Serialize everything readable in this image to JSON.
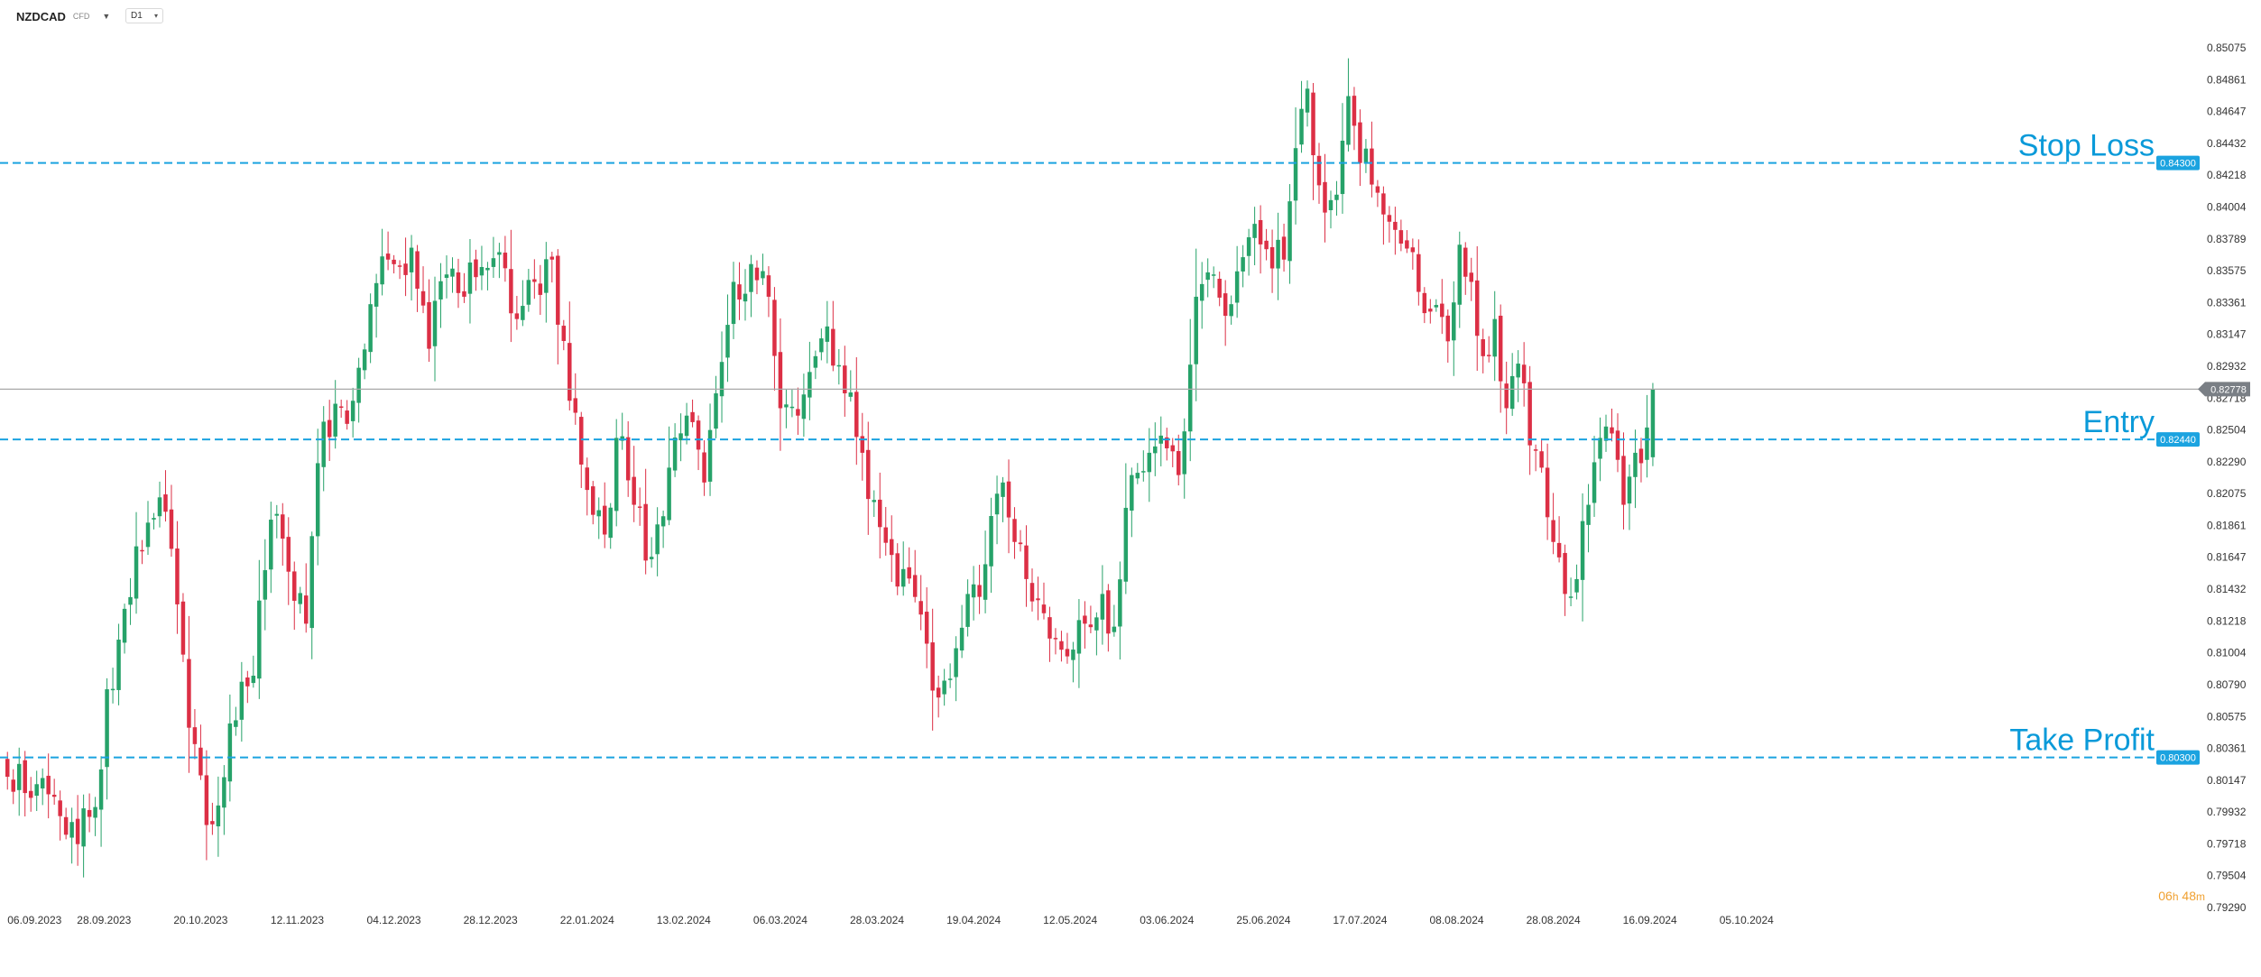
{
  "toolbar": {
    "symbol": "NZDCAD",
    "instrument_type": "CFD",
    "symbol_dropdown_icon": "caret-down-icon",
    "timeframe": "D1",
    "timeframe_dropdown_icon": "chevron-down-icon"
  },
  "countdown": {
    "hours": "06",
    "hours_unit": "h",
    "minutes": "48",
    "minutes_unit": "m"
  },
  "colors": {
    "bull": "#26a269",
    "bear": "#dc2f45",
    "level_line": "#1ba3e0",
    "level_label_text": "#0a9ad9",
    "current_price_line": "#a8a8a8",
    "current_price_badge": "#7a7f85",
    "axis_text": "#333333"
  },
  "chart_data": {
    "type": "candlestick",
    "title": "",
    "xlabel": "",
    "ylabel": "",
    "ylim": [
      0.7929,
      0.8518
    ],
    "grid": false,
    "y_ticks": [
      "0.85075",
      "0.84861",
      "0.84647",
      "0.84432",
      "0.84218",
      "0.84004",
      "0.83789",
      "0.83575",
      "0.83361",
      "0.83147",
      "0.82932",
      "0.82718",
      "0.82504",
      "0.82290",
      "0.82075",
      "0.81861",
      "0.81647",
      "0.81432",
      "0.81218",
      "0.81004",
      "0.80790",
      "0.80575",
      "0.80361",
      "0.80147",
      "0.79932",
      "0.79718",
      "0.79504",
      "0.79290"
    ],
    "x_ticks": [
      "06.09.2023",
      "28.09.2023",
      "20.10.2023",
      "12.11.2023",
      "04.12.2023",
      "28.12.2023",
      "22.01.2024",
      "13.02.2024",
      "06.03.2024",
      "28.03.2024",
      "19.04.2024",
      "12.05.2024",
      "03.06.2024",
      "25.06.2024",
      "17.07.2024",
      "08.08.2024",
      "28.08.2024",
      "16.09.2024",
      "05.10.2024"
    ],
    "x_tick_spacing_bars": 16.5,
    "anchors": [
      {
        "bar": 0,
        "close": 0.8017
      },
      {
        "bar": 5,
        "close": 0.8012
      },
      {
        "bar": 10,
        "close": 0.7978
      },
      {
        "bar": 14,
        "close": 0.799
      },
      {
        "bar": 20,
        "close": 0.813
      },
      {
        "bar": 24,
        "close": 0.8188
      },
      {
        "bar": 26,
        "close": 0.8205
      },
      {
        "bar": 29,
        "close": 0.8133
      },
      {
        "bar": 31,
        "close": 0.805
      },
      {
        "bar": 35,
        "close": 0.7985
      },
      {
        "bar": 39,
        "close": 0.8055
      },
      {
        "bar": 42,
        "close": 0.8085
      },
      {
        "bar": 45,
        "close": 0.819
      },
      {
        "bar": 48,
        "close": 0.8155
      },
      {
        "bar": 51,
        "close": 0.812
      },
      {
        "bar": 53,
        "close": 0.8228
      },
      {
        "bar": 56,
        "close": 0.8268
      },
      {
        "bar": 59,
        "close": 0.827
      },
      {
        "bar": 62,
        "close": 0.8335
      },
      {
        "bar": 65,
        "close": 0.8365
      },
      {
        "bar": 69,
        "close": 0.8373
      },
      {
        "bar": 72,
        "close": 0.8305
      },
      {
        "bar": 75,
        "close": 0.8355
      },
      {
        "bar": 78,
        "close": 0.834
      },
      {
        "bar": 81,
        "close": 0.836
      },
      {
        "bar": 84,
        "close": 0.837
      },
      {
        "bar": 87,
        "close": 0.8325
      },
      {
        "bar": 90,
        "close": 0.835
      },
      {
        "bar": 93,
        "close": 0.8365
      },
      {
        "bar": 96,
        "close": 0.827
      },
      {
        "bar": 99,
        "close": 0.821
      },
      {
        "bar": 102,
        "close": 0.818
      },
      {
        "bar": 104,
        "close": 0.8245
      },
      {
        "bar": 107,
        "close": 0.82
      },
      {
        "bar": 110,
        "close": 0.8165
      },
      {
        "bar": 113,
        "close": 0.8225
      },
      {
        "bar": 116,
        "close": 0.826
      },
      {
        "bar": 119,
        "close": 0.8215
      },
      {
        "bar": 121,
        "close": 0.8275
      },
      {
        "bar": 124,
        "close": 0.835
      },
      {
        "bar": 127,
        "close": 0.8362
      },
      {
        "bar": 130,
        "close": 0.834
      },
      {
        "bar": 132,
        "close": 0.8265
      },
      {
        "bar": 135,
        "close": 0.826
      },
      {
        "bar": 138,
        "close": 0.83
      },
      {
        "bar": 140,
        "close": 0.832
      },
      {
        "bar": 143,
        "close": 0.8275
      },
      {
        "bar": 146,
        "close": 0.8235
      },
      {
        "bar": 149,
        "close": 0.8185
      },
      {
        "bar": 152,
        "close": 0.8145
      },
      {
        "bar": 155,
        "close": 0.8138
      },
      {
        "bar": 158,
        "close": 0.8075
      },
      {
        "bar": 161,
        "close": 0.8083
      },
      {
        "bar": 164,
        "close": 0.814
      },
      {
        "bar": 167,
        "close": 0.816
      },
      {
        "bar": 170,
        "close": 0.8215
      },
      {
        "bar": 172,
        "close": 0.8175
      },
      {
        "bar": 175,
        "close": 0.8135
      },
      {
        "bar": 178,
        "close": 0.811
      },
      {
        "bar": 181,
        "close": 0.8098
      },
      {
        "bar": 184,
        "close": 0.812
      },
      {
        "bar": 187,
        "close": 0.814
      },
      {
        "bar": 189,
        "close": 0.8118
      },
      {
        "bar": 192,
        "close": 0.822
      },
      {
        "bar": 195,
        "close": 0.8235
      },
      {
        "bar": 198,
        "close": 0.8238
      },
      {
        "bar": 200,
        "close": 0.822
      },
      {
        "bar": 203,
        "close": 0.834
      },
      {
        "bar": 206,
        "close": 0.8355
      },
      {
        "bar": 209,
        "close": 0.8335
      },
      {
        "bar": 212,
        "close": 0.838
      },
      {
        "bar": 215,
        "close": 0.8372
      },
      {
        "bar": 218,
        "close": 0.8365
      },
      {
        "bar": 220,
        "close": 0.844
      },
      {
        "bar": 222,
        "close": 0.848
      },
      {
        "bar": 224,
        "close": 0.8415
      },
      {
        "bar": 226,
        "close": 0.8405
      },
      {
        "bar": 228,
        "close": 0.8445
      },
      {
        "bar": 229,
        "close": 0.8475
      },
      {
        "bar": 231,
        "close": 0.843
      },
      {
        "bar": 234,
        "close": 0.841
      },
      {
        "bar": 237,
        "close": 0.8385
      },
      {
        "bar": 240,
        "close": 0.837
      },
      {
        "bar": 243,
        "close": 0.833
      },
      {
        "bar": 246,
        "close": 0.831
      },
      {
        "bar": 248,
        "close": 0.8375
      },
      {
        "bar": 250,
        "close": 0.835
      },
      {
        "bar": 252,
        "close": 0.83
      },
      {
        "bar": 254,
        "close": 0.8325
      },
      {
        "bar": 256,
        "close": 0.8265
      },
      {
        "bar": 258,
        "close": 0.8295
      },
      {
        "bar": 260,
        "close": 0.824
      },
      {
        "bar": 262,
        "close": 0.8225
      },
      {
        "bar": 264,
        "close": 0.8175
      },
      {
        "bar": 266,
        "close": 0.814
      },
      {
        "bar": 268,
        "close": 0.815
      },
      {
        "bar": 270,
        "close": 0.82
      },
      {
        "bar": 272,
        "close": 0.8245
      },
      {
        "bar": 274,
        "close": 0.8248
      },
      {
        "bar": 276,
        "close": 0.82
      },
      {
        "bar": 278,
        "close": 0.8235
      },
      {
        "bar": 279,
        "close": 0.8228
      },
      {
        "bar": 281,
        "close": 0.8278
      }
    ],
    "last": {
      "open": 0.8232,
      "high": 0.8282,
      "low": 0.8226,
      "close": 0.82778
    },
    "current_price": 0.82778,
    "current_price_label": "0.82778",
    "levels": [
      {
        "name": "Stop Loss",
        "value": 0.843,
        "label": "0.84300"
      },
      {
        "name": "Entry",
        "value": 0.8244,
        "label": "0.82440"
      },
      {
        "name": "Take Profit",
        "value": 0.803,
        "label": "0.80300"
      }
    ]
  }
}
